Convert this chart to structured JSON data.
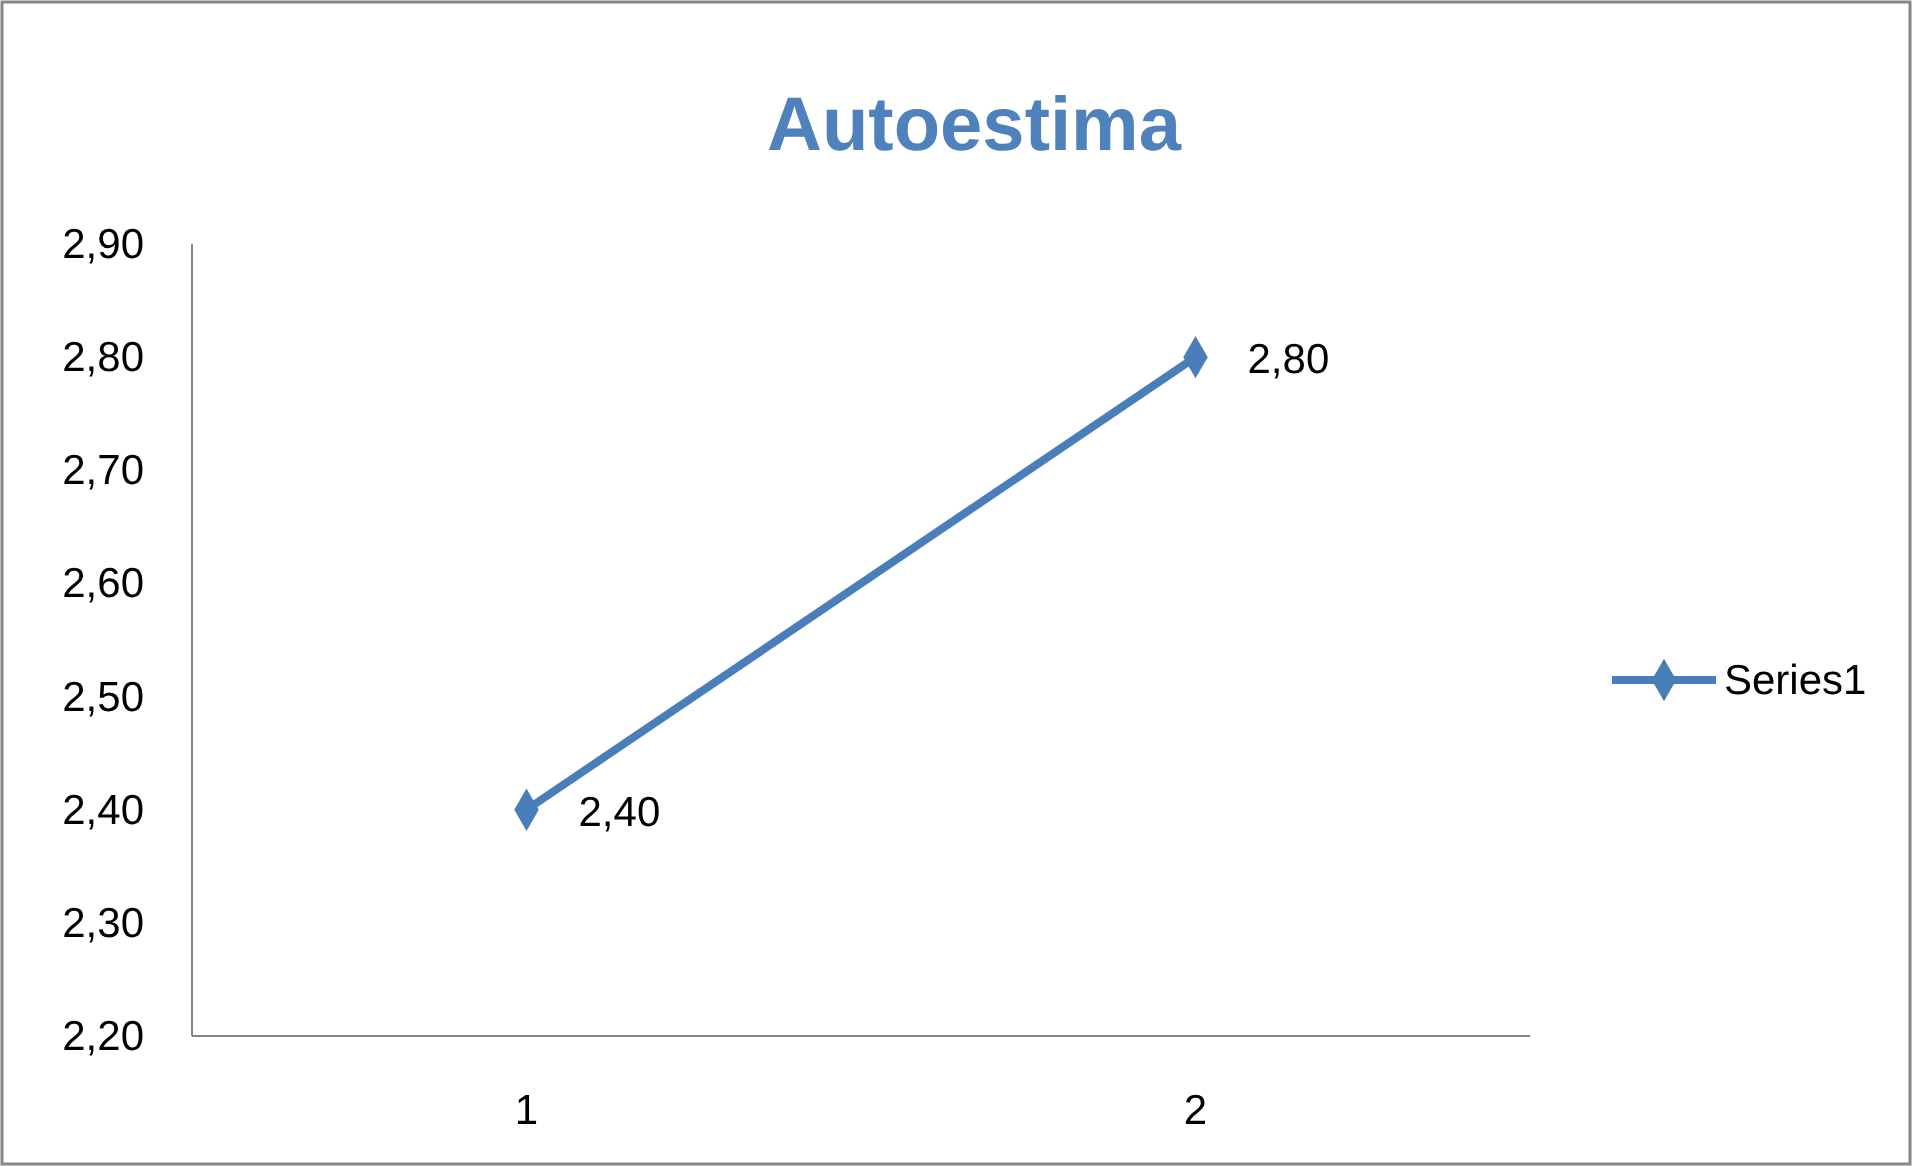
{
  "chart_data": {
    "type": "line",
    "title": "Autoestima",
    "categories": [
      "1",
      "2"
    ],
    "series": [
      {
        "name": "Series1",
        "color": "#4a7ebb",
        "values": [
          2.4,
          2.8
        ],
        "value_labels": [
          "2,40",
          "2,80"
        ]
      }
    ],
    "ylim": [
      2.2,
      2.9
    ],
    "yticks": [
      {
        "value": 2.2,
        "label": "2,20"
      },
      {
        "value": 2.3,
        "label": "2,30"
      },
      {
        "value": 2.4,
        "label": "2,40"
      },
      {
        "value": 2.5,
        "label": "2,50"
      },
      {
        "value": 2.6,
        "label": "2,60"
      },
      {
        "value": 2.7,
        "label": "2,70"
      },
      {
        "value": 2.8,
        "label": "2,80"
      },
      {
        "value": 2.9,
        "label": "2,90"
      }
    ],
    "marker": "diamond",
    "legend": "right",
    "grid": false
  }
}
